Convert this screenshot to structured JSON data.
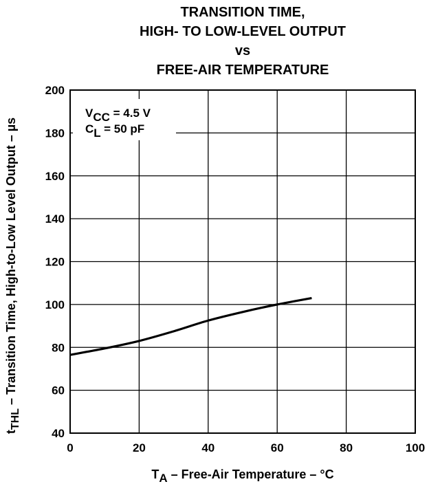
{
  "chart_data": {
    "type": "line",
    "title_lines": [
      "TRANSITION TIME,",
      "HIGH- TO LOW-LEVEL OUTPUT",
      "vs",
      "FREE-AIR TEMPERATURE"
    ],
    "xlabel": {
      "symbol": "T",
      "sub": "A",
      "text": " – Free-Air Temperature – °C"
    },
    "ylabel": {
      "symbol": "t",
      "sub": "THL",
      "text": "  – Transition Time, High-to-Low Level Output – µs"
    },
    "xlim": [
      0,
      100
    ],
    "ylim": [
      40,
      200
    ],
    "xticks": [
      0,
      20,
      40,
      60,
      80,
      100
    ],
    "yticks": [
      40,
      60,
      80,
      100,
      120,
      140,
      160,
      180,
      200
    ],
    "grid": true,
    "annotation": {
      "line1": {
        "symbol": "V",
        "sub": "CC",
        "text": " = 4.5 V"
      },
      "line2": {
        "symbol": "C",
        "sub": "L",
        "text": " = 50 pF"
      }
    },
    "series": [
      {
        "x": [
          0,
          10,
          20,
          30,
          40,
          50,
          60,
          70
        ],
        "y": [
          76.5,
          79.5,
          83,
          87.5,
          92.5,
          96.5,
          100,
          103
        ]
      }
    ]
  }
}
